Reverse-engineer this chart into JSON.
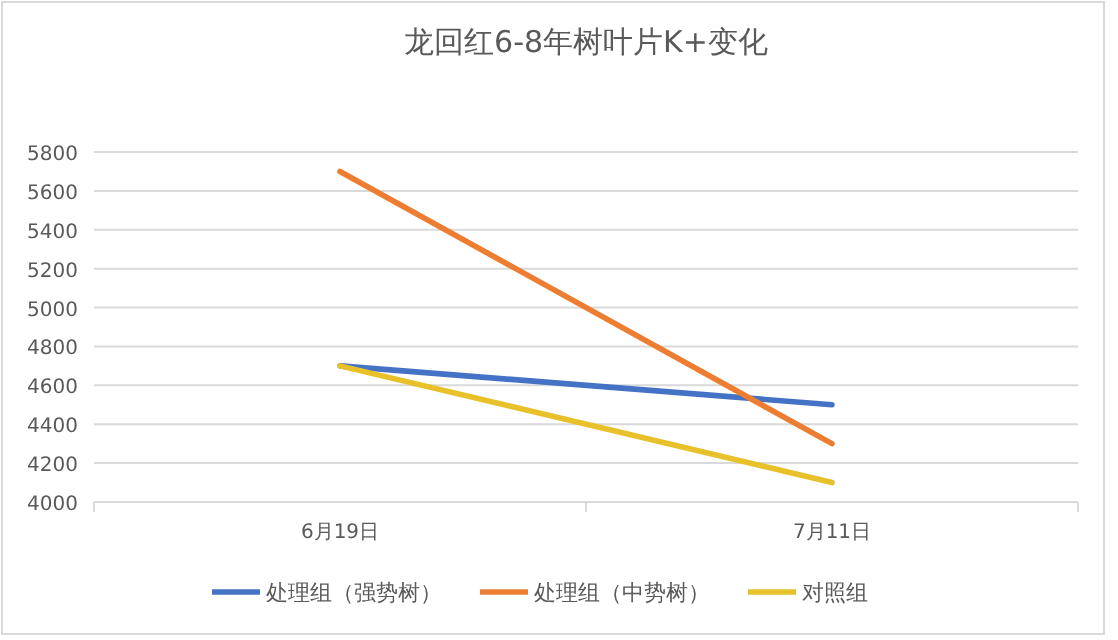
{
  "chart_data": {
    "type": "line",
    "title": "龙回红6-8年树叶片K+变化",
    "categories": [
      "6月19日",
      "7月11日"
    ],
    "series": [
      {
        "name": "处理组（强势树）",
        "color": "#4472c4",
        "values": [
          4700,
          4500
        ]
      },
      {
        "name": "处理组（中势树）",
        "color": "#ed7d31",
        "values": [
          5700,
          4300
        ]
      },
      {
        "name": "对照组",
        "color": "#e8c12a",
        "values": [
          4700,
          4100
        ]
      }
    ],
    "ylim": [
      4000,
      5800
    ],
    "yticks": [
      4000,
      4200,
      4400,
      4600,
      4800,
      5000,
      5200,
      5400,
      5600,
      5800
    ],
    "grid": "y",
    "legend": "bottom",
    "line_style": "solid",
    "marker": "none"
  }
}
